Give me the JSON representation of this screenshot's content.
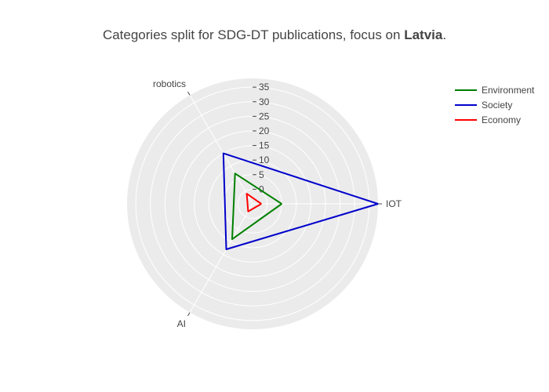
{
  "chart_data": {
    "type": "radar",
    "title_prefix": "Categories split for SDG-DT publications, focus on ",
    "title_bold": "Latvia",
    "title_suffix": ".",
    "categories": [
      "IOT",
      "robotics",
      "AI"
    ],
    "radial_ticks": [
      0,
      5,
      10,
      15,
      20,
      25,
      30,
      35
    ],
    "radial_range": [
      -5,
      38
    ],
    "series": [
      {
        "name": "Environment",
        "color": "#008000",
        "values": [
          5,
          7,
          9
        ]
      },
      {
        "name": "Society",
        "color": "#0000cc",
        "values": [
          38,
          15,
          13
        ]
      },
      {
        "name": "Economy",
        "color": "#ff0000",
        "values": [
          -2,
          -1,
          -2
        ]
      }
    ],
    "legend_position": "top-right",
    "background": "#ebebeb",
    "grid": true
  }
}
